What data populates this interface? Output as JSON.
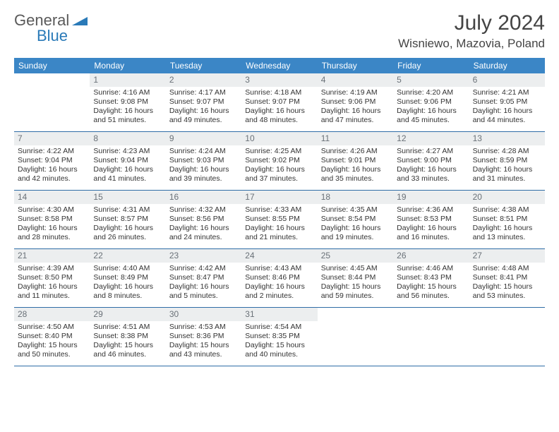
{
  "brand": {
    "line1": "General",
    "line2": "Blue",
    "triangle_color": "#2a7ab8"
  },
  "title": "July 2024",
  "location": "Wisniewo, Mazovia, Poland",
  "header_bg": "#3b86c6",
  "header_text": "#ffffff",
  "daynum_bg": "#eceeef",
  "daynum_color": "#6a7178",
  "row_border": "#2f6da6",
  "dow": [
    "Sunday",
    "Monday",
    "Tuesday",
    "Wednesday",
    "Thursday",
    "Friday",
    "Saturday"
  ],
  "weeks": [
    [
      null,
      {
        "n": "1",
        "sr": "Sunrise: 4:16 AM",
        "ss": "Sunset: 9:08 PM",
        "dl": "Daylight: 16 hours and 51 minutes."
      },
      {
        "n": "2",
        "sr": "Sunrise: 4:17 AM",
        "ss": "Sunset: 9:07 PM",
        "dl": "Daylight: 16 hours and 49 minutes."
      },
      {
        "n": "3",
        "sr": "Sunrise: 4:18 AM",
        "ss": "Sunset: 9:07 PM",
        "dl": "Daylight: 16 hours and 48 minutes."
      },
      {
        "n": "4",
        "sr": "Sunrise: 4:19 AM",
        "ss": "Sunset: 9:06 PM",
        "dl": "Daylight: 16 hours and 47 minutes."
      },
      {
        "n": "5",
        "sr": "Sunrise: 4:20 AM",
        "ss": "Sunset: 9:06 PM",
        "dl": "Daylight: 16 hours and 45 minutes."
      },
      {
        "n": "6",
        "sr": "Sunrise: 4:21 AM",
        "ss": "Sunset: 9:05 PM",
        "dl": "Daylight: 16 hours and 44 minutes."
      }
    ],
    [
      {
        "n": "7",
        "sr": "Sunrise: 4:22 AM",
        "ss": "Sunset: 9:04 PM",
        "dl": "Daylight: 16 hours and 42 minutes."
      },
      {
        "n": "8",
        "sr": "Sunrise: 4:23 AM",
        "ss": "Sunset: 9:04 PM",
        "dl": "Daylight: 16 hours and 41 minutes."
      },
      {
        "n": "9",
        "sr": "Sunrise: 4:24 AM",
        "ss": "Sunset: 9:03 PM",
        "dl": "Daylight: 16 hours and 39 minutes."
      },
      {
        "n": "10",
        "sr": "Sunrise: 4:25 AM",
        "ss": "Sunset: 9:02 PM",
        "dl": "Daylight: 16 hours and 37 minutes."
      },
      {
        "n": "11",
        "sr": "Sunrise: 4:26 AM",
        "ss": "Sunset: 9:01 PM",
        "dl": "Daylight: 16 hours and 35 minutes."
      },
      {
        "n": "12",
        "sr": "Sunrise: 4:27 AM",
        "ss": "Sunset: 9:00 PM",
        "dl": "Daylight: 16 hours and 33 minutes."
      },
      {
        "n": "13",
        "sr": "Sunrise: 4:28 AM",
        "ss": "Sunset: 8:59 PM",
        "dl": "Daylight: 16 hours and 31 minutes."
      }
    ],
    [
      {
        "n": "14",
        "sr": "Sunrise: 4:30 AM",
        "ss": "Sunset: 8:58 PM",
        "dl": "Daylight: 16 hours and 28 minutes."
      },
      {
        "n": "15",
        "sr": "Sunrise: 4:31 AM",
        "ss": "Sunset: 8:57 PM",
        "dl": "Daylight: 16 hours and 26 minutes."
      },
      {
        "n": "16",
        "sr": "Sunrise: 4:32 AM",
        "ss": "Sunset: 8:56 PM",
        "dl": "Daylight: 16 hours and 24 minutes."
      },
      {
        "n": "17",
        "sr": "Sunrise: 4:33 AM",
        "ss": "Sunset: 8:55 PM",
        "dl": "Daylight: 16 hours and 21 minutes."
      },
      {
        "n": "18",
        "sr": "Sunrise: 4:35 AM",
        "ss": "Sunset: 8:54 PM",
        "dl": "Daylight: 16 hours and 19 minutes."
      },
      {
        "n": "19",
        "sr": "Sunrise: 4:36 AM",
        "ss": "Sunset: 8:53 PM",
        "dl": "Daylight: 16 hours and 16 minutes."
      },
      {
        "n": "20",
        "sr": "Sunrise: 4:38 AM",
        "ss": "Sunset: 8:51 PM",
        "dl": "Daylight: 16 hours and 13 minutes."
      }
    ],
    [
      {
        "n": "21",
        "sr": "Sunrise: 4:39 AM",
        "ss": "Sunset: 8:50 PM",
        "dl": "Daylight: 16 hours and 11 minutes."
      },
      {
        "n": "22",
        "sr": "Sunrise: 4:40 AM",
        "ss": "Sunset: 8:49 PM",
        "dl": "Daylight: 16 hours and 8 minutes."
      },
      {
        "n": "23",
        "sr": "Sunrise: 4:42 AM",
        "ss": "Sunset: 8:47 PM",
        "dl": "Daylight: 16 hours and 5 minutes."
      },
      {
        "n": "24",
        "sr": "Sunrise: 4:43 AM",
        "ss": "Sunset: 8:46 PM",
        "dl": "Daylight: 16 hours and 2 minutes."
      },
      {
        "n": "25",
        "sr": "Sunrise: 4:45 AM",
        "ss": "Sunset: 8:44 PM",
        "dl": "Daylight: 15 hours and 59 minutes."
      },
      {
        "n": "26",
        "sr": "Sunrise: 4:46 AM",
        "ss": "Sunset: 8:43 PM",
        "dl": "Daylight: 15 hours and 56 minutes."
      },
      {
        "n": "27",
        "sr": "Sunrise: 4:48 AM",
        "ss": "Sunset: 8:41 PM",
        "dl": "Daylight: 15 hours and 53 minutes."
      }
    ],
    [
      {
        "n": "28",
        "sr": "Sunrise: 4:50 AM",
        "ss": "Sunset: 8:40 PM",
        "dl": "Daylight: 15 hours and 50 minutes."
      },
      {
        "n": "29",
        "sr": "Sunrise: 4:51 AM",
        "ss": "Sunset: 8:38 PM",
        "dl": "Daylight: 15 hours and 46 minutes."
      },
      {
        "n": "30",
        "sr": "Sunrise: 4:53 AM",
        "ss": "Sunset: 8:36 PM",
        "dl": "Daylight: 15 hours and 43 minutes."
      },
      {
        "n": "31",
        "sr": "Sunrise: 4:54 AM",
        "ss": "Sunset: 8:35 PM",
        "dl": "Daylight: 15 hours and 40 minutes."
      },
      null,
      null,
      null
    ]
  ]
}
